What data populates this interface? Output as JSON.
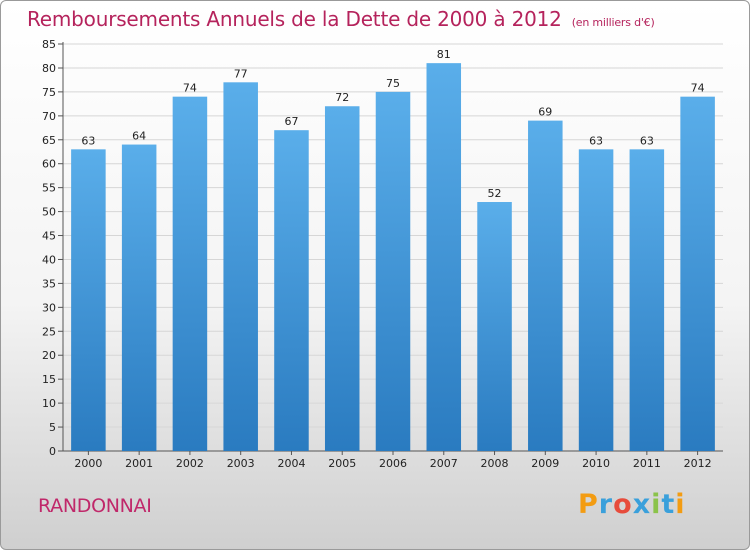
{
  "chart_data": {
    "type": "bar",
    "title": "Remboursements Annuels de la Dette de 2000 à 2012",
    "subtitle": "(en milliers d'€)",
    "categories": [
      "2000",
      "2001",
      "2002",
      "2003",
      "2004",
      "2005",
      "2006",
      "2007",
      "2008",
      "2009",
      "2010",
      "2011",
      "2012"
    ],
    "values": [
      63,
      64,
      74,
      77,
      67,
      72,
      75,
      81,
      52,
      69,
      63,
      63,
      74
    ],
    "ylim": [
      0,
      85
    ],
    "yticks": [
      0,
      5,
      10,
      15,
      20,
      25,
      30,
      35,
      40,
      45,
      50,
      55,
      60,
      65,
      70,
      75,
      80,
      85
    ],
    "grid": true,
    "bar_color_top": "#5aaeea",
    "bar_color_bottom": "#2a7bc0"
  },
  "commune": "RANDONNAI",
  "brand": {
    "letters": [
      "P",
      "r",
      "o",
      "x",
      "i",
      "t",
      "i"
    ],
    "colors": [
      "#f39c12",
      "#3aa0db",
      "#e74c3c",
      "#3aa0db",
      "#8bc34a",
      "#3aa0db",
      "#f39c12"
    ]
  }
}
